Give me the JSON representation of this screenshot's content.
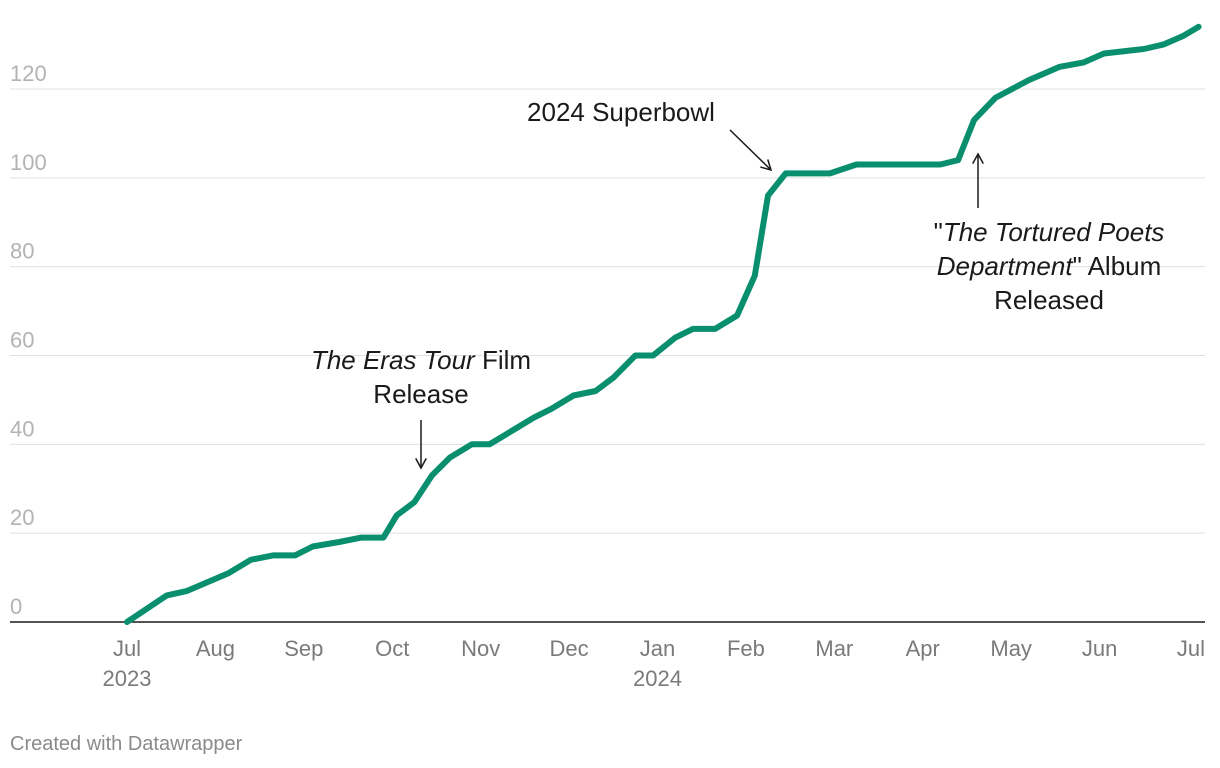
{
  "chart_data": {
    "type": "line",
    "title": "",
    "xlabel": "",
    "ylabel": "",
    "ylim": [
      0,
      135
    ],
    "yticks": [
      0,
      20,
      40,
      60,
      80,
      100,
      120
    ],
    "xlim": [
      0,
      12
    ],
    "xticks": [
      {
        "x": 0,
        "label": "Jul",
        "sublabel": "2023"
      },
      {
        "x": 1,
        "label": "Aug",
        "sublabel": ""
      },
      {
        "x": 2,
        "label": "Sep",
        "sublabel": ""
      },
      {
        "x": 3,
        "label": "Oct",
        "sublabel": ""
      },
      {
        "x": 4,
        "label": "Nov",
        "sublabel": ""
      },
      {
        "x": 5,
        "label": "Dec",
        "sublabel": ""
      },
      {
        "x": 6,
        "label": "Jan",
        "sublabel": "2024"
      },
      {
        "x": 7,
        "label": "Feb",
        "sublabel": ""
      },
      {
        "x": 8,
        "label": "Mar",
        "sublabel": ""
      },
      {
        "x": 9,
        "label": "Apr",
        "sublabel": ""
      },
      {
        "x": 10,
        "label": "May",
        "sublabel": ""
      },
      {
        "x": 11,
        "label": "Jun",
        "sublabel": ""
      },
      {
        "x": 12,
        "label": "Jul",
        "sublabel": ""
      }
    ],
    "series": [
      {
        "name": "Cumulative total",
        "color": "#0a8f6e",
        "x": [
          0,
          0.45,
          0.68,
          1.15,
          1.4,
          1.65,
          1.9,
          2.1,
          2.4,
          2.65,
          2.9,
          3.05,
          3.25,
          3.45,
          3.65,
          3.9,
          4.1,
          4.35,
          4.6,
          4.8,
          5.05,
          5.3,
          5.5,
          5.75,
          5.95,
          6.2,
          6.4,
          6.65,
          6.9,
          7.1,
          7.25,
          7.45,
          7.7,
          7.95,
          8.25,
          9.2,
          9.4,
          9.58,
          9.82,
          10.2,
          10.55,
          10.82,
          11.05,
          11.5,
          11.72,
          11.95,
          12.12
        ],
        "values": [
          0,
          6,
          7,
          11,
          14,
          15,
          15,
          17,
          18,
          19,
          19,
          24,
          27,
          33,
          37,
          40,
          40,
          43,
          46,
          48,
          51,
          52,
          55,
          60,
          60,
          64,
          66,
          66,
          69,
          78,
          96,
          101,
          101,
          101,
          103,
          103,
          104,
          113,
          118,
          122,
          125,
          126,
          128,
          129,
          130,
          132,
          134
        ]
      }
    ],
    "annotations": [
      {
        "id": "eras",
        "x": 3.3,
        "y": 33,
        "lines": [
          [
            {
              "t": "The Eras Tour",
              "italic": true
            },
            {
              "t": " Film",
              "italic": false
            }
          ],
          [
            {
              "t": "Release",
              "italic": false
            }
          ]
        ]
      },
      {
        "id": "superbowl",
        "x": 7.25,
        "y": 101,
        "lines": [
          [
            {
              "t": "2024 Superbowl",
              "italic": false
            }
          ]
        ]
      },
      {
        "id": "ttpd",
        "x": 9.58,
        "y": 106,
        "lines": [
          [
            {
              "t": "\"",
              "italic": false
            },
            {
              "t": "The Tortured Poets",
              "italic": true
            }
          ],
          [
            {
              "t": "Department",
              "italic": true
            },
            {
              "t": "\" Album",
              "italic": false
            }
          ],
          [
            {
              "t": "Released",
              "italic": false
            }
          ]
        ]
      }
    ]
  },
  "footer": {
    "credit": "Created with Datawrapper"
  }
}
